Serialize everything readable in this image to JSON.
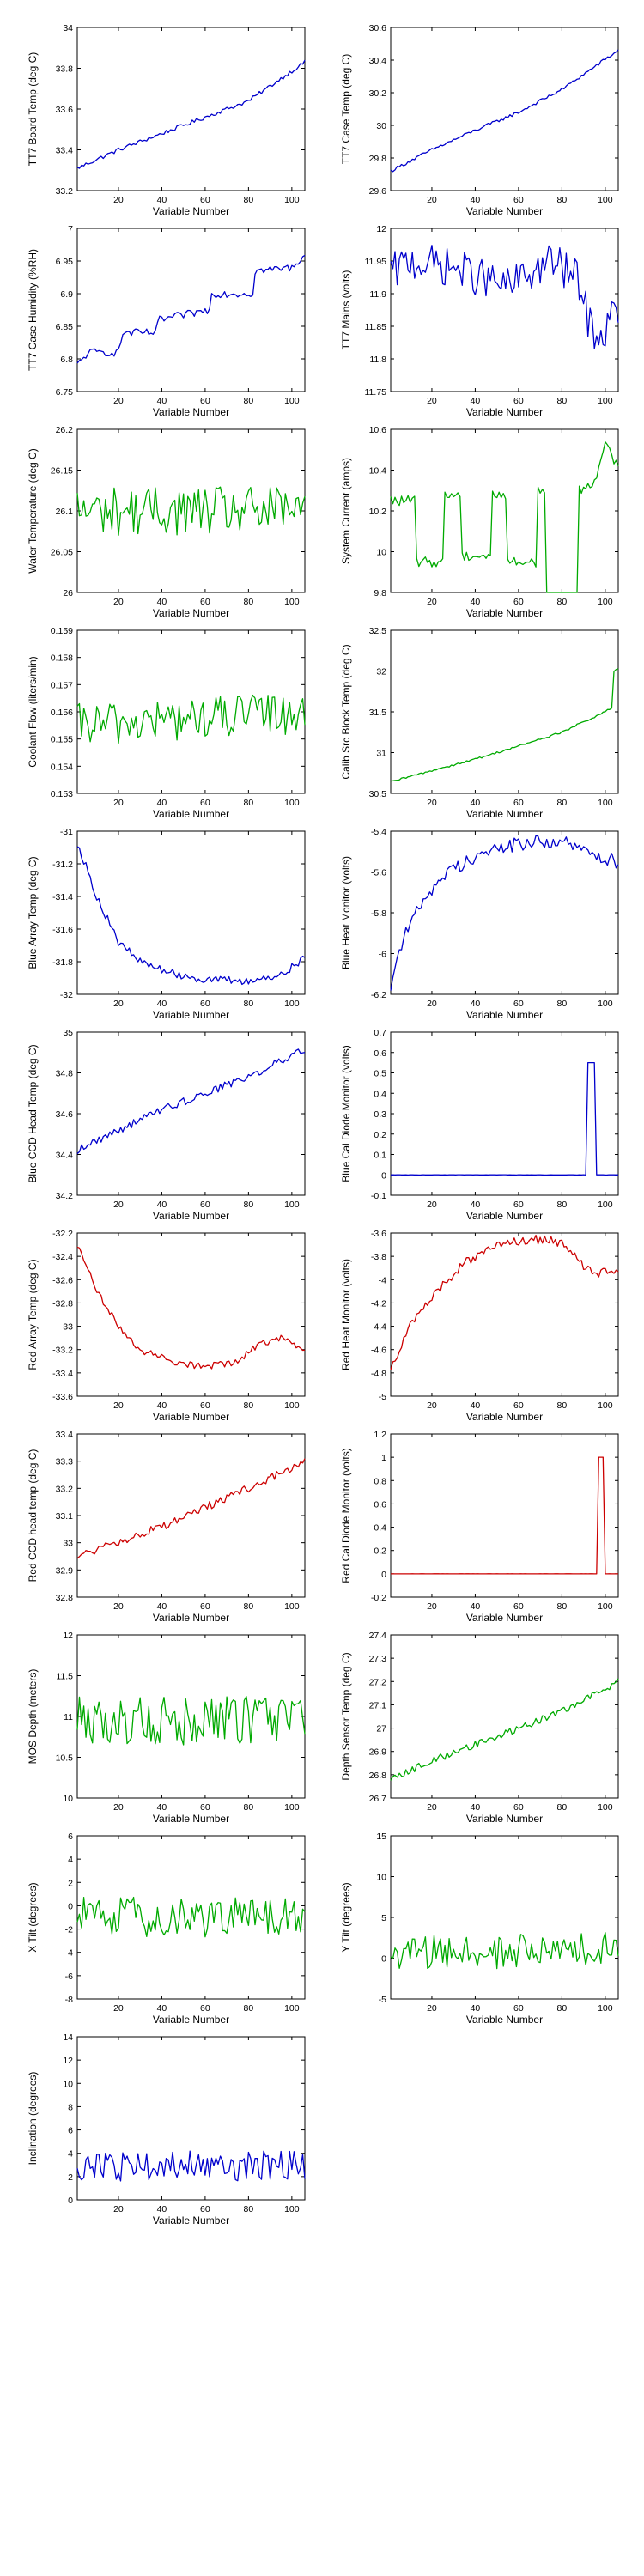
{
  "chart_data": [
    {
      "type": "line",
      "ylabel": "TT7 Board Temp (deg C)",
      "xlabel": "Variable Number",
      "color": "#0000cc",
      "xlim": [
        1,
        106
      ],
      "ylim": [
        33.2,
        34
      ],
      "yticks": [
        "33.2",
        "33.4",
        "33.6",
        "33.8",
        "34"
      ],
      "xticks": [
        "20",
        "40",
        "60",
        "80",
        "100"
      ],
      "generator": {
        "kind": "trend",
        "points": [
          [
            1,
            33.31
          ],
          [
            20,
            33.4
          ],
          [
            40,
            33.48
          ],
          [
            60,
            33.56
          ],
          [
            80,
            33.64
          ],
          [
            106,
            33.83
          ]
        ],
        "noise": 0.01
      }
    },
    {
      "type": "line",
      "ylabel": "TT7 Case Temp (deg C)",
      "xlabel": "Variable Number",
      "color": "#0000cc",
      "xlim": [
        1,
        106
      ],
      "ylim": [
        29.6,
        30.6
      ],
      "yticks": [
        "29.6",
        "29.8",
        "30",
        "30.2",
        "30.4",
        "30.6"
      ],
      "xticks": [
        "20",
        "40",
        "60",
        "80",
        "100"
      ],
      "generator": {
        "kind": "trend",
        "points": [
          [
            1,
            29.72
          ],
          [
            20,
            29.85
          ],
          [
            40,
            29.97
          ],
          [
            60,
            30.08
          ],
          [
            80,
            30.22
          ],
          [
            106,
            30.46
          ]
        ],
        "noise": 0.01
      }
    },
    {
      "type": "line",
      "ylabel": "TT7 Case Humidity (%RH)",
      "xlabel": "Variable Number",
      "color": "#0000cc",
      "xlim": [
        1,
        106
      ],
      "ylim": [
        6.75,
        7
      ],
      "yticks": [
        "6.75",
        "6.8",
        "6.85",
        "6.9",
        "6.95",
        "7"
      ],
      "xticks": [
        "20",
        "40",
        "60",
        "80",
        "100"
      ],
      "generator": {
        "kind": "steps",
        "points": [
          [
            1,
            6.79
          ],
          [
            6,
            6.81
          ],
          [
            20,
            6.81
          ],
          [
            22,
            6.84
          ],
          [
            37,
            6.84
          ],
          [
            39,
            6.86
          ],
          [
            62,
            6.875
          ],
          [
            63,
            6.9
          ],
          [
            82,
            6.9
          ],
          [
            83,
            6.935
          ],
          [
            100,
            6.94
          ],
          [
            106,
            6.96
          ]
        ],
        "noise": 0.006
      }
    },
    {
      "type": "line",
      "ylabel": "TT7 Mains  (volts)",
      "xlabel": "Variable Number",
      "color": "#0000cc",
      "xlim": [
        1,
        106
      ],
      "ylim": [
        11.75,
        12
      ],
      "yticks": [
        "11.75",
        "11.8",
        "11.85",
        "11.9",
        "11.95",
        "12"
      ],
      "xticks": [
        "20",
        "40",
        "60",
        "80",
        "100"
      ],
      "generator": {
        "kind": "trend",
        "points": [
          [
            1,
            11.93
          ],
          [
            10,
            11.95
          ],
          [
            30,
            11.94
          ],
          [
            55,
            11.91
          ],
          [
            75,
            11.95
          ],
          [
            88,
            11.92
          ],
          [
            92,
            11.86
          ],
          [
            98,
            11.83
          ],
          [
            106,
            11.88
          ]
        ],
        "noise": 0.03
      }
    },
    {
      "type": "line",
      "ylabel": "Water Temperature (deg C)",
      "xlabel": "Variable Number",
      "color": "#00aa00",
      "xlim": [
        1,
        106
      ],
      "ylim": [
        26,
        26.2
      ],
      "yticks": [
        "26",
        "26.05",
        "26.1",
        "26.15",
        "26.2"
      ],
      "xticks": [
        "20",
        "40",
        "60",
        "80",
        "100"
      ],
      "generator": {
        "kind": "noise",
        "points": [
          [
            1,
            26.1
          ],
          [
            106,
            26.1
          ]
        ],
        "noise": 0.03
      }
    },
    {
      "type": "line",
      "ylabel": "System Current (amps)",
      "xlabel": "Variable Number",
      "color": "#00aa00",
      "xlim": [
        1,
        106
      ],
      "ylim": [
        9.8,
        10.6
      ],
      "yticks": [
        "9.8",
        "10",
        "10.2",
        "10.4",
        "10.6"
      ],
      "xticks": [
        "20",
        "40",
        "60",
        "80",
        "100"
      ],
      "generator": {
        "kind": "steps",
        "points": [
          [
            1,
            10.25
          ],
          [
            12,
            10.25
          ],
          [
            13,
            9.95
          ],
          [
            25,
            9.95
          ],
          [
            26,
            10.28
          ],
          [
            33,
            10.28
          ],
          [
            34,
            9.98
          ],
          [
            47,
            9.98
          ],
          [
            48,
            10.28
          ],
          [
            54,
            10.28
          ],
          [
            55,
            9.95
          ],
          [
            68,
            9.95
          ],
          [
            69,
            10.3
          ],
          [
            72,
            10.3
          ],
          [
            73,
            9.74
          ],
          [
            87,
            9.74
          ],
          [
            88,
            10.3
          ],
          [
            95,
            10.35
          ],
          [
            100,
            10.52
          ],
          [
            106,
            10.42
          ]
        ],
        "noise": 0.025
      }
    },
    {
      "type": "line",
      "ylabel": "Coolant Flow (liters/min)",
      "xlabel": "Variable Number",
      "color": "#00aa00",
      "xlim": [
        1,
        106
      ],
      "ylim": [
        0.153,
        0.159
      ],
      "yticks": [
        "0.153",
        "0.154",
        "0.155",
        "0.156",
        "0.157",
        "0.158",
        "0.159"
      ],
      "xticks": [
        "20",
        "40",
        "60",
        "80",
        "100"
      ],
      "generator": {
        "kind": "noise",
        "points": [
          [
            1,
            0.1555
          ],
          [
            106,
            0.156
          ]
        ],
        "noise": 0.0008
      }
    },
    {
      "type": "line",
      "ylabel": "Calib Src Block Temp (deg C)",
      "xlabel": "Variable Number",
      "color": "#00aa00",
      "xlim": [
        1,
        106
      ],
      "ylim": [
        30.5,
        32.5
      ],
      "yticks": [
        "30.5",
        "31",
        "31.5",
        "32",
        "32.5"
      ],
      "xticks": [
        "20",
        "40",
        "60",
        "80",
        "100"
      ],
      "generator": {
        "kind": "trend",
        "points": [
          [
            1,
            30.64
          ],
          [
            20,
            30.78
          ],
          [
            40,
            30.92
          ],
          [
            60,
            31.08
          ],
          [
            80,
            31.25
          ],
          [
            100,
            31.5
          ],
          [
            103,
            31.55
          ],
          [
            104,
            32.0
          ],
          [
            106,
            32.02
          ]
        ],
        "noise": 0.012
      }
    },
    {
      "type": "line",
      "ylabel": "Blue Array Temp (deg C)",
      "xlabel": "Variable Number",
      "color": "#0000cc",
      "xlim": [
        1,
        106
      ],
      "ylim": [
        -32,
        -31
      ],
      "yticks": [
        "-32",
        "-31.8",
        "-31.6",
        "-31.4",
        "-31.2",
        "-31"
      ],
      "xticks": [
        "20",
        "40",
        "60",
        "80",
        "100"
      ],
      "generator": {
        "kind": "trend",
        "points": [
          [
            1,
            -31.07
          ],
          [
            10,
            -31.4
          ],
          [
            20,
            -31.68
          ],
          [
            30,
            -31.8
          ],
          [
            45,
            -31.87
          ],
          [
            60,
            -31.91
          ],
          [
            80,
            -31.92
          ],
          [
            95,
            -31.88
          ],
          [
            106,
            -31.78
          ]
        ],
        "noise": 0.025
      }
    },
    {
      "type": "line",
      "ylabel": "Blue Heat Monitor  (volts)",
      "xlabel": "Variable Number",
      "color": "#0000cc",
      "xlim": [
        1,
        106
      ],
      "ylim": [
        -6.2,
        -5.4
      ],
      "yticks": [
        "-6.2",
        "-6",
        "-5.8",
        "-5.6",
        "-5.4"
      ],
      "xticks": [
        "20",
        "40",
        "60",
        "80",
        "100"
      ],
      "generator": {
        "kind": "trend",
        "points": [
          [
            1,
            -6.15
          ],
          [
            6,
            -5.95
          ],
          [
            15,
            -5.75
          ],
          [
            25,
            -5.62
          ],
          [
            40,
            -5.52
          ],
          [
            60,
            -5.46
          ],
          [
            80,
            -5.45
          ],
          [
            95,
            -5.52
          ],
          [
            106,
            -5.55
          ]
        ],
        "noise": 0.035
      }
    },
    {
      "type": "line",
      "ylabel": "Blue CCD Head Temp (deg C)",
      "xlabel": "Variable Number",
      "color": "#0000cc",
      "xlim": [
        1,
        106
      ],
      "ylim": [
        34.2,
        35
      ],
      "yticks": [
        "34.2",
        "34.4",
        "34.6",
        "34.8",
        "35"
      ],
      "xticks": [
        "20",
        "40",
        "60",
        "80",
        "100"
      ],
      "generator": {
        "kind": "trend",
        "points": [
          [
            1,
            34.42
          ],
          [
            20,
            34.52
          ],
          [
            40,
            34.62
          ],
          [
            60,
            34.7
          ],
          [
            80,
            34.78
          ],
          [
            106,
            34.92
          ]
        ],
        "noise": 0.02
      }
    },
    {
      "type": "line",
      "ylabel": "Blue Cal Diode Monitor (volts)",
      "xlabel": "Variable Number",
      "color": "#0000cc",
      "xlim": [
        1,
        106
      ],
      "ylim": [
        -0.1,
        0.7
      ],
      "yticks": [
        "-0.1",
        "0",
        "0.1",
        "0.2",
        "0.3",
        "0.4",
        "0.5",
        "0.6",
        "0.7"
      ],
      "xticks": [
        "20",
        "40",
        "60",
        "80",
        "100"
      ],
      "generator": {
        "kind": "spike",
        "base": 0,
        "points": [
          [
            92,
            0.55
          ],
          [
            93,
            0.55
          ],
          [
            94,
            0.55
          ],
          [
            95,
            0.55
          ]
        ],
        "noise": 0.001
      }
    },
    {
      "type": "line",
      "ylabel": "Red Array Temp (deg C)",
      "xlabel": "Variable Number",
      "color": "#cc0000",
      "xlim": [
        1,
        106
      ],
      "ylim": [
        -33.6,
        -32.2
      ],
      "yticks": [
        "-33.6",
        "-33.4",
        "-33.2",
        "-33",
        "-32.8",
        "-32.6",
        "-32.4",
        "-32.2"
      ],
      "xticks": [
        "20",
        "40",
        "60",
        "80",
        "100"
      ],
      "generator": {
        "kind": "trend",
        "points": [
          [
            1,
            -32.3
          ],
          [
            10,
            -32.7
          ],
          [
            20,
            -33.0
          ],
          [
            30,
            -33.2
          ],
          [
            45,
            -33.3
          ],
          [
            60,
            -33.35
          ],
          [
            75,
            -33.3
          ],
          [
            85,
            -33.15
          ],
          [
            95,
            -33.1
          ],
          [
            106,
            -33.2
          ]
        ],
        "noise": 0.03
      }
    },
    {
      "type": "line",
      "ylabel": "Red Heat Monitor  (volts)",
      "xlabel": "Variable Number",
      "color": "#cc0000",
      "xlim": [
        1,
        106
      ],
      "ylim": [
        -5,
        -3.6
      ],
      "yticks": [
        "-5",
        "-4.8",
        "-4.6",
        "-4.4",
        "-4.2",
        "-4",
        "-3.8",
        "-3.6"
      ],
      "xticks": [
        "20",
        "40",
        "60",
        "80",
        "100"
      ],
      "generator": {
        "kind": "trend",
        "points": [
          [
            1,
            -4.75
          ],
          [
            10,
            -4.4
          ],
          [
            20,
            -4.15
          ],
          [
            35,
            -3.85
          ],
          [
            50,
            -3.72
          ],
          [
            65,
            -3.65
          ],
          [
            80,
            -3.68
          ],
          [
            88,
            -3.85
          ],
          [
            95,
            -3.95
          ],
          [
            106,
            -3.9
          ]
        ],
        "noise": 0.04
      }
    },
    {
      "type": "line",
      "ylabel": "Red CCD head temp (deg C)",
      "xlabel": "Variable Number",
      "color": "#cc0000",
      "xlim": [
        1,
        106
      ],
      "ylim": [
        32.8,
        33.4
      ],
      "yticks": [
        "32.8",
        "32.9",
        "33",
        "33.1",
        "33.2",
        "33.3",
        "33.4"
      ],
      "xticks": [
        "20",
        "40",
        "60",
        "80",
        "100"
      ],
      "generator": {
        "kind": "trend",
        "points": [
          [
            1,
            32.95
          ],
          [
            20,
            33.0
          ],
          [
            40,
            33.06
          ],
          [
            60,
            33.13
          ],
          [
            80,
            33.2
          ],
          [
            106,
            33.3
          ]
        ],
        "noise": 0.015
      }
    },
    {
      "type": "line",
      "ylabel": "Red Cal Diode Monitor (volts)",
      "xlabel": "Variable Number",
      "color": "#cc0000",
      "xlim": [
        1,
        106
      ],
      "ylim": [
        -0.2,
        1.2
      ],
      "yticks": [
        "-0.2",
        "0",
        "0.2",
        "0.4",
        "0.6",
        "0.8",
        "1",
        "1.2"
      ],
      "xticks": [
        "20",
        "40",
        "60",
        "80",
        "100"
      ],
      "generator": {
        "kind": "spike",
        "base": 0,
        "points": [
          [
            97,
            1.0
          ],
          [
            98,
            1.0
          ],
          [
            99,
            1.0
          ]
        ],
        "noise": 0.001
      }
    },
    {
      "type": "line",
      "ylabel": "MOS Depth  (meters)",
      "xlabel": "Variable Number",
      "color": "#00aa00",
      "xlim": [
        1,
        106
      ],
      "ylim": [
        10,
        12
      ],
      "yticks": [
        "10",
        "10.5",
        "11",
        "11.5",
        "12"
      ],
      "xticks": [
        "20",
        "40",
        "60",
        "80",
        "100"
      ],
      "generator": {
        "kind": "noise",
        "points": [
          [
            1,
            10.95
          ],
          [
            106,
            10.95
          ]
        ],
        "noise": 0.3
      }
    },
    {
      "type": "line",
      "ylabel": "Depth Sensor Temp (deg C)",
      "xlabel": "Variable Number",
      "color": "#00aa00",
      "xlim": [
        1,
        106
      ],
      "ylim": [
        26.7,
        27.4
      ],
      "yticks": [
        "26.7",
        "26.8",
        "26.9",
        "27",
        "27.1",
        "27.2",
        "27.3",
        "27.4"
      ],
      "xticks": [
        "20",
        "40",
        "60",
        "80",
        "100"
      ],
      "generator": {
        "kind": "trend",
        "points": [
          [
            1,
            26.78
          ],
          [
            20,
            26.86
          ],
          [
            40,
            26.93
          ],
          [
            60,
            27.0
          ],
          [
            80,
            27.07
          ],
          [
            106,
            27.2
          ]
        ],
        "noise": 0.015
      }
    },
    {
      "type": "line",
      "ylabel": "X Tilt  (degrees)",
      "xlabel": "Variable Number",
      "color": "#00aa00",
      "xlim": [
        1,
        106
      ],
      "ylim": [
        -8,
        6
      ],
      "yticks": [
        "-8",
        "-6",
        "-4",
        "-2",
        "0",
        "2",
        "4",
        "6"
      ],
      "xticks": [
        "20",
        "40",
        "60",
        "80",
        "100"
      ],
      "generator": {
        "kind": "noise",
        "points": [
          [
            1,
            -1
          ],
          [
            106,
            -1
          ]
        ],
        "noise": 1.8
      }
    },
    {
      "type": "line",
      "ylabel": "Y Tilt  (degrees)",
      "xlabel": "Variable Number",
      "color": "#00aa00",
      "xlim": [
        1,
        106
      ],
      "ylim": [
        -5,
        15
      ],
      "yticks": [
        "-5",
        "0",
        "5",
        "10",
        "15"
      ],
      "xticks": [
        "20",
        "40",
        "60",
        "80",
        "100"
      ],
      "generator": {
        "kind": "noise",
        "points": [
          [
            1,
            0.5
          ],
          [
            106,
            1
          ]
        ],
        "noise": 2.2
      }
    },
    {
      "type": "line",
      "ylabel": "Inclination  (degrees)",
      "xlabel": "Variable Number",
      "color": "#0000cc",
      "xlim": [
        1,
        106
      ],
      "ylim": [
        0,
        14
      ],
      "yticks": [
        "0",
        "2",
        "4",
        "6",
        "8",
        "10",
        "12",
        "14"
      ],
      "xticks": [
        "20",
        "40",
        "60",
        "80",
        "100"
      ],
      "generator": {
        "kind": "noise",
        "points": [
          [
            1,
            2.8
          ],
          [
            106,
            3
          ]
        ],
        "noise": 1.3
      }
    }
  ]
}
